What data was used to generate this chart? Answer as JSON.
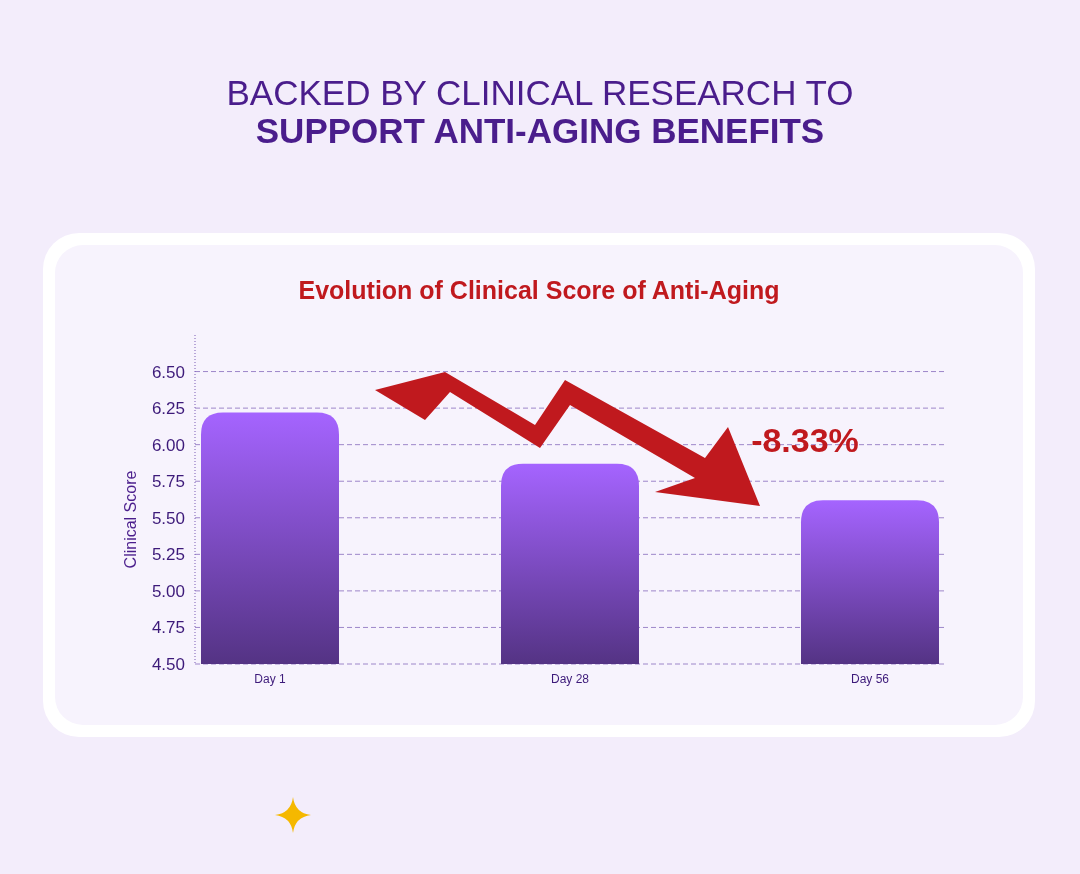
{
  "chart_data": {
    "type": "bar",
    "title": "BACKED BY CLINICAL RESEARCH TO SUPPORT ANTI-AGING BENEFITS",
    "subtitle": "Evolution of Clinical Score of Anti-Aging",
    "ylabel": "Clinical Score",
    "categories": [
      "Day 1",
      "Day 28",
      "Day 56"
    ],
    "values": [
      6.22,
      5.87,
      5.62
    ],
    "color": "#7c4bc4",
    "ylim": [
      4.5,
      6.75
    ],
    "yticks": [
      {
        "value": 4.5,
        "label": "4.50"
      },
      {
        "value": 4.75,
        "label": "4.75"
      },
      {
        "value": 5,
        "label": "5.00"
      },
      {
        "value": 5.25,
        "label": "5.25"
      },
      {
        "value": 5.5,
        "label": "5.50"
      },
      {
        "value": 5.75,
        "label": "5.75"
      },
      {
        "value": 6,
        "label": "6.00"
      },
      {
        "value": 6.25,
        "label": "6.25"
      },
      {
        "value": 6.5,
        "label": "6.50"
      }
    ],
    "grid": "y",
    "annotations": [
      "-8.33%"
    ]
  }
}
